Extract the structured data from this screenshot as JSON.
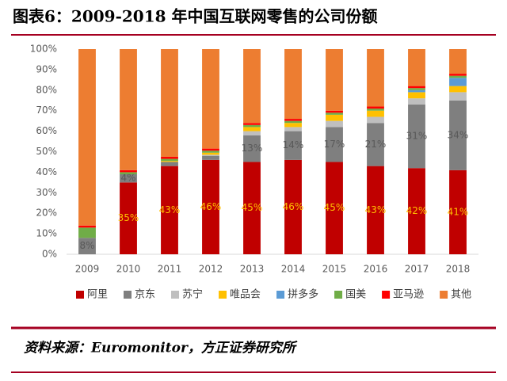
{
  "chart_data": {
    "type": "stacked_bar",
    "title": "图表6：2009-2018 年中国互联网零售的公司份额",
    "source": "资料来源：Euromonitor，方正证券研究所",
    "categories": [
      "2009",
      "2010",
      "2011",
      "2012",
      "2013",
      "2014",
      "2015",
      "2016",
      "2017",
      "2018"
    ],
    "ylim": [
      0,
      100
    ],
    "yticks": [
      {
        "value": 0,
        "label": "0%"
      },
      {
        "value": 10,
        "label": "10%"
      },
      {
        "value": 20,
        "label": "20%"
      },
      {
        "value": 30,
        "label": "30%"
      },
      {
        "value": 40,
        "label": "40%"
      },
      {
        "value": 50,
        "label": "50%"
      },
      {
        "value": 60,
        "label": "60%"
      },
      {
        "value": 70,
        "label": "70%"
      },
      {
        "value": 80,
        "label": "80%"
      },
      {
        "value": 90,
        "label": "90%"
      },
      {
        "value": 100,
        "label": "100%"
      }
    ],
    "legend": "bottom",
    "series": [
      {
        "name": "阿里",
        "color": "#c00000",
        "values": [
          0,
          35,
          43,
          46,
          45,
          46,
          45,
          43,
          42,
          41
        ],
        "value_labels": [
          null,
          "35%",
          "43%",
          "46%",
          "45%",
          "46%",
          "45%",
          "43%",
          "42%",
          "41%"
        ],
        "label_color": "#ffc000"
      },
      {
        "name": "京东",
        "color": "#7f7f7f",
        "values": [
          8,
          4,
          2,
          2,
          13,
          14,
          17,
          21,
          31,
          34
        ],
        "value_labels": [
          "8%",
          "4%",
          null,
          null,
          "13%",
          "14%",
          "17%",
          "21%",
          "31%",
          "34%"
        ],
        "label_color": "#595959"
      },
      {
        "name": "苏宁",
        "color": "#bfbfbf",
        "values": [
          0,
          0,
          0,
          0.5,
          2,
          2,
          3,
          3,
          3,
          4
        ]
      },
      {
        "name": "唯品会",
        "color": "#ffc000",
        "values": [
          0,
          0,
          0.5,
          1,
          2,
          2,
          3,
          3,
          3,
          3
        ]
      },
      {
        "name": "拼多多",
        "color": "#5b9bd5",
        "values": [
          0,
          0,
          0,
          0,
          0,
          0,
          0,
          0,
          1,
          4
        ]
      },
      {
        "name": "国美",
        "color": "#70ad47",
        "values": [
          5,
          1,
          1,
          1,
          1,
          1,
          1,
          1,
          1,
          1
        ]
      },
      {
        "name": "亚马逊",
        "color": "#ff0000",
        "values": [
          1,
          1,
          1,
          1,
          1,
          1,
          1,
          1,
          1,
          1
        ]
      },
      {
        "name": "其他",
        "color": "#ed7d31",
        "values": [
          86,
          59,
          52.5,
          48.5,
          36,
          34,
          30,
          28,
          18,
          12
        ]
      }
    ]
  }
}
